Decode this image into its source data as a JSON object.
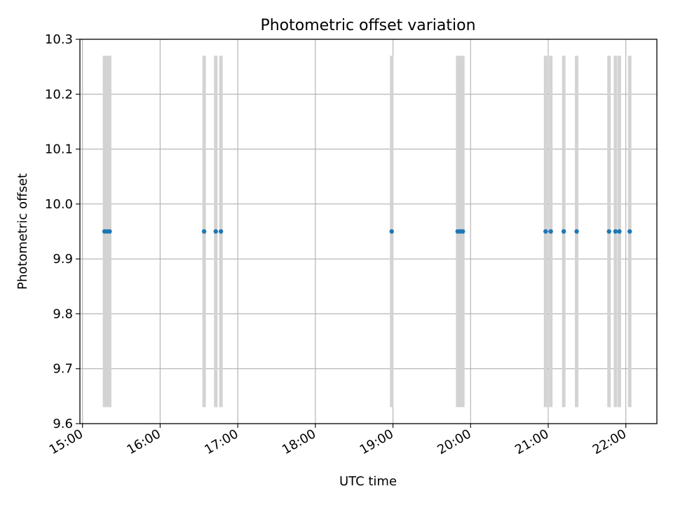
{
  "chart_data": {
    "type": "scatter",
    "title": "Photometric offset variation",
    "xlabel": "UTC time",
    "ylabel": "Photometric offset",
    "x_ticks": [
      "15:00",
      "16:00",
      "17:00",
      "18:00",
      "19:00",
      "20:00",
      "21:00",
      "22:00"
    ],
    "y_ticks": [
      "9.6",
      "9.7",
      "9.8",
      "9.9",
      "10.0",
      "10.1",
      "10.2",
      "10.3"
    ],
    "xlim": [
      "14:58",
      "22:24"
    ],
    "ylim": [
      9.6,
      10.3
    ],
    "grid": true,
    "errorbar_color": "#d3d3d3",
    "point_color": "#1f77b4",
    "series": [
      {
        "x": [
          "15:17",
          "15:19",
          "15:21",
          "16:34",
          "16:43",
          "16:47",
          "18:59",
          "19:50",
          "19:52",
          "19:54",
          "20:58",
          "21:02",
          "21:12",
          "21:22",
          "21:47",
          "21:52",
          "21:55",
          "22:03"
        ],
        "y": [
          9.95,
          9.95,
          9.95,
          9.95,
          9.95,
          9.95,
          9.95,
          9.95,
          9.95,
          9.95,
          9.95,
          9.95,
          9.95,
          9.95,
          9.95,
          9.95,
          9.95,
          9.95
        ],
        "err_low": [
          9.63,
          9.63,
          9.63,
          9.63,
          9.63,
          9.63,
          9.63,
          9.63,
          9.63,
          9.63,
          9.63,
          9.63,
          9.63,
          9.63,
          9.63,
          9.63,
          9.63,
          9.63
        ],
        "err_high": [
          10.27,
          10.27,
          10.27,
          10.27,
          10.27,
          10.27,
          10.27,
          10.27,
          10.27,
          10.27,
          10.27,
          10.27,
          10.27,
          10.27,
          10.27,
          10.27,
          10.27,
          10.27
        ]
      }
    ]
  }
}
